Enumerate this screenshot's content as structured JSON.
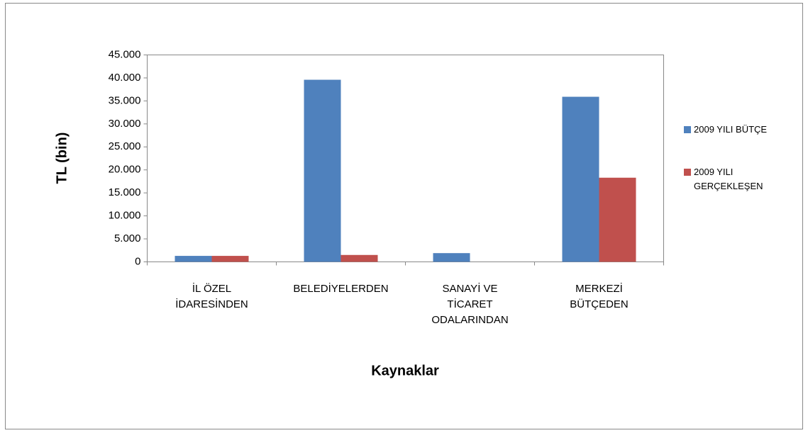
{
  "chart_data": {
    "type": "bar",
    "xlabel": "Kaynaklar",
    "ylabel": "TL (bin)",
    "categories": [
      "İL ÖZEL İDARESİNDEN",
      "BELEDİYELERDEN",
      "SANAYİ VE TİCARET ODALARINDAN",
      "MERKEZİ BÜTÇEDEN"
    ],
    "series": [
      {
        "name": "2009 YILI BÜTÇE",
        "color": "#4f81bd",
        "values": [
          1300,
          39600,
          1900,
          35900
        ]
      },
      {
        "name": "2009 YILI GERÇEKLEŞEN",
        "color": "#c0504d",
        "values": [
          1300,
          1500,
          0,
          18300
        ]
      }
    ],
    "ylim": [
      0,
      45000
    ],
    "yticks": [
      0,
      {
        "value": 5000,
        "label": "5.000"
      },
      {
        "value": 10000,
        "label": "10.000"
      },
      {
        "value": 15000,
        "label": "15.000"
      },
      {
        "value": 20000,
        "label": "20.000"
      },
      {
        "value": 25000,
        "label": "25.000"
      },
      {
        "value": 30000,
        "label": "30.000"
      },
      {
        "value": 35000,
        "label": "35.000"
      },
      {
        "value": 40000,
        "label": "40.000"
      },
      {
        "value": 45000,
        "label": "45.000"
      }
    ],
    "grid": false,
    "legend": "right"
  }
}
